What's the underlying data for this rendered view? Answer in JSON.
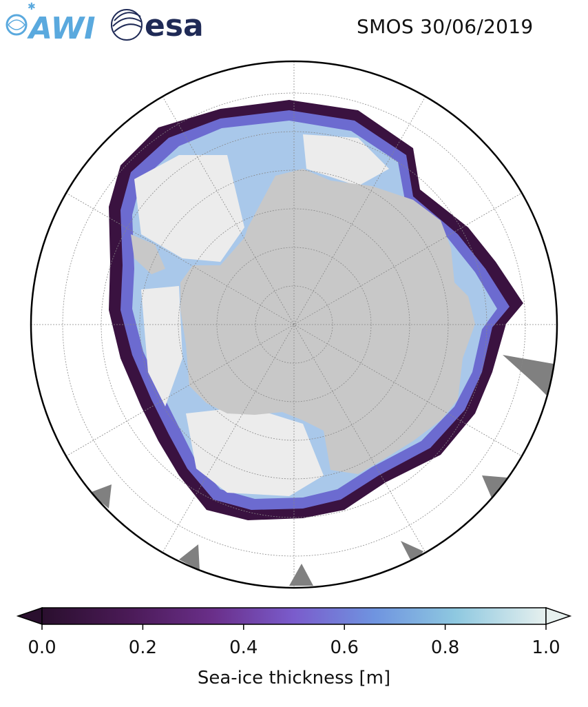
{
  "header": {
    "title": "SMOS 30/06/2019",
    "logos": [
      {
        "name": "awi-logo",
        "text": "AWI",
        "color": "#5aa9de"
      },
      {
        "name": "esa-logo",
        "text": "esa",
        "color": "#1f2a56"
      }
    ]
  },
  "map": {
    "projection": "south-polar-stereographic",
    "land_color": "#c8c8c8",
    "thick_ice_color": "#ececec",
    "gridline_color": "#888888",
    "missing_data_color": "#808080"
  },
  "colorbar": {
    "label": "Sea-ice thickness [m]",
    "min": 0.0,
    "max": 1.0,
    "ticks": [
      "0.0",
      "0.2",
      "0.4",
      "0.6",
      "0.8",
      "1.0"
    ],
    "tick_values": [
      0.0,
      0.2,
      0.4,
      0.6,
      0.8,
      1.0
    ],
    "extend": "both",
    "colormap": [
      "#2a0f2e",
      "#4a1a56",
      "#6a2f8a",
      "#7a5ccc",
      "#6f94e0",
      "#8ec8e0",
      "#e6f0ee"
    ]
  }
}
